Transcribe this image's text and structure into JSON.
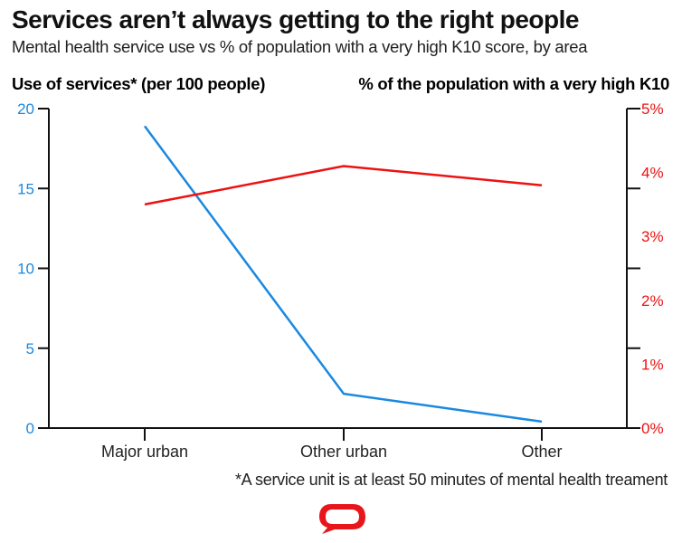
{
  "colors": {
    "services": "#1a88e0",
    "k10": "#ee1111",
    "axis": "#111111",
    "text": "#222222",
    "logo": "#e8161b"
  },
  "chart_data": {
    "type": "line",
    "title": "Services aren’t always getting to the right people",
    "subtitle": "Mental health service use vs % of population with a very high K10 score, by area",
    "categories": [
      "Major urban",
      "Other urban",
      "Other"
    ],
    "series": [
      {
        "name": "Use of services* (per 100 people)",
        "axis": "left",
        "values": [
          18.9,
          2.15,
          0.4
        ]
      },
      {
        "name": "% of the population with a very high K10",
        "axis": "right",
        "values": [
          3.5,
          4.1,
          3.8
        ]
      }
    ],
    "left_axis": {
      "label": "Use of services* (per 100 people)",
      "ylim": [
        0,
        20
      ],
      "ticks": [
        0,
        5,
        10,
        15,
        20
      ],
      "tick_labels": [
        "0",
        "5",
        "10",
        "15",
        "20"
      ]
    },
    "right_axis": {
      "label": "% of the population with a very high K10",
      "ylim": [
        0,
        5
      ],
      "ticks": [
        0,
        1,
        2,
        3,
        4,
        5
      ],
      "tick_labels": [
        "0%",
        "1%",
        "2%",
        "3%",
        "4%",
        "5%"
      ]
    },
    "xlabel": "",
    "grid": false,
    "legend": "top",
    "footnote": "*A service unit is at least 50 minutes of mental health treament"
  },
  "logo": {
    "icon": "speech-bubble-logo-icon"
  }
}
